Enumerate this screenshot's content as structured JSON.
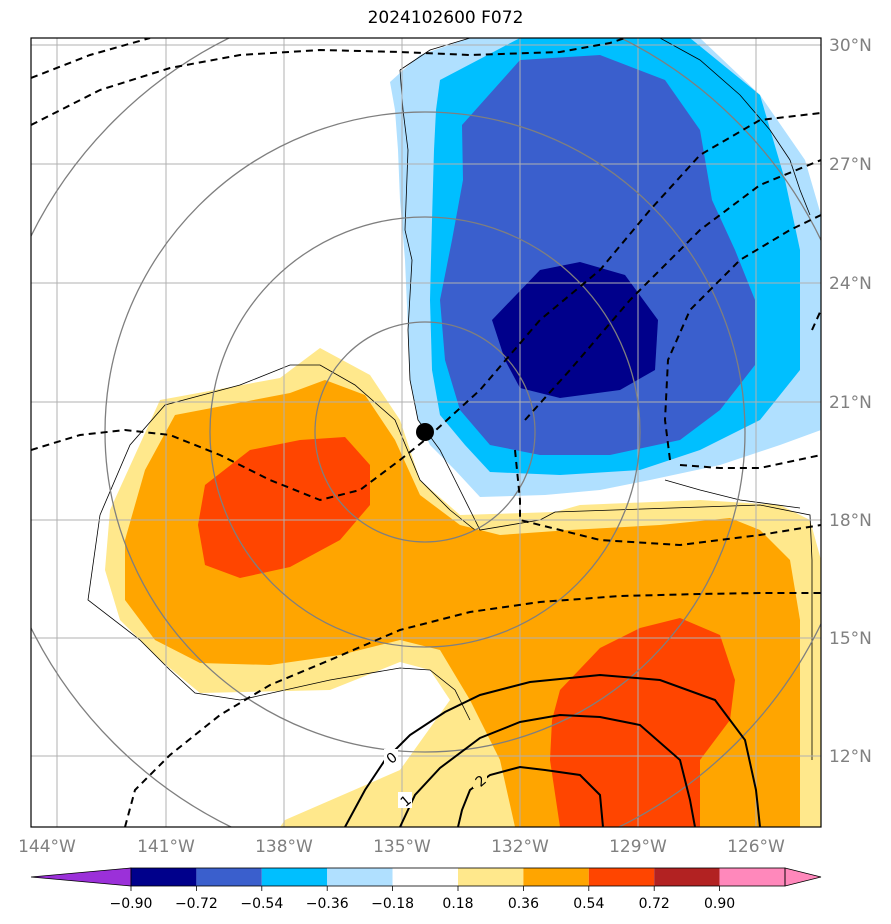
{
  "title": "2024102600 F072",
  "map": {
    "lon_labels": [
      "144°W",
      "141°W",
      "138°W",
      "135°W",
      "132°W",
      "129°W",
      "126°W"
    ],
    "lat_labels": [
      "30°N",
      "27°N",
      "24°N",
      "21°N",
      "18°N",
      "15°N",
      "12°N"
    ],
    "contour_labels": [
      "0",
      "1",
      "2"
    ],
    "storm_center": {
      "lon": "134.5°W",
      "lat": "20.3°N"
    }
  },
  "colorbar": {
    "ticks": [
      "−0.90",
      "−0.72",
      "−0.54",
      "−0.36",
      "−0.18",
      "0.18",
      "0.36",
      "0.54",
      "0.72",
      "0.90"
    ],
    "colors": [
      "#9b30d9",
      "#00008b",
      "#3a5fcd",
      "#00bfff",
      "#b0e0ff",
      "#ffffff",
      "#ffe88c",
      "#ffa500",
      "#ff4500",
      "#b22222",
      "#ff88bb"
    ]
  },
  "colors": {
    "negative_strong": "#00008b",
    "negative_mid": "#3a5fcd",
    "negative_light": "#00bfff",
    "negative_faint": "#b0e0ff",
    "positive_faint": "#ffe88c",
    "positive_mid": "#ffa500",
    "positive_strong": "#ff4500"
  }
}
